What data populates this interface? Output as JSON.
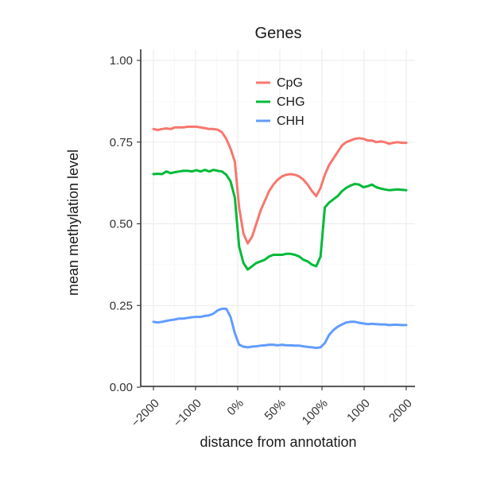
{
  "chart_data": {
    "type": "line",
    "title": "Genes",
    "xlabel": "distance from annotation",
    "ylabel": "mean methylation level",
    "ylim": [
      0,
      1
    ],
    "yticks": [
      {
        "value": 0,
        "label": "0.00"
      },
      {
        "value": 0.25,
        "label": "0.25"
      },
      {
        "value": 0.5,
        "label": "0.50"
      },
      {
        "value": 0.75,
        "label": "0.75"
      },
      {
        "value": 1,
        "label": "1.00"
      }
    ],
    "xticks": [
      "-2000",
      "-1000",
      "0%",
      "50%",
      "100%",
      "1000",
      "2000"
    ],
    "grid": true,
    "legend_position": "top-center",
    "series": [
      {
        "name": "CpG",
        "color": "#F8766D",
        "x": [
          -2000,
          -1900,
          -1800,
          -1700,
          -1600,
          -1500,
          -1400,
          -1300,
          -1200,
          -1100,
          -1000,
          -900,
          -800,
          -700,
          -600,
          -500,
          -400,
          -300,
          -200,
          -100,
          "0%",
          "5%",
          "10%",
          "15%",
          "20%",
          "25%",
          "30%",
          "35%",
          "40%",
          "45%",
          "50%",
          "55%",
          "60%",
          "65%",
          "70%",
          "75%",
          "80%",
          "85%",
          "90%",
          "95%",
          "100%",
          100,
          200,
          300,
          400,
          500,
          600,
          700,
          800,
          900,
          1000,
          1100,
          1200,
          1300,
          1400,
          1500,
          1600,
          1700,
          1800,
          1900
        ],
        "values": [
          0.79,
          0.787,
          0.79,
          0.792,
          0.79,
          0.795,
          0.795,
          0.795,
          0.797,
          0.797,
          0.797,
          0.795,
          0.793,
          0.79,
          0.79,
          0.788,
          0.78,
          0.76,
          0.73,
          0.69,
          0.55,
          0.47,
          0.44,
          0.46,
          0.5,
          0.54,
          0.57,
          0.6,
          0.62,
          0.635,
          0.645,
          0.65,
          0.652,
          0.65,
          0.645,
          0.635,
          0.62,
          0.6,
          0.585,
          0.61,
          0.65,
          0.68,
          0.7,
          0.72,
          0.74,
          0.75,
          0.755,
          0.76,
          0.762,
          0.76,
          0.755,
          0.755,
          0.75,
          0.752,
          0.75,
          0.745,
          0.748,
          0.75,
          0.748,
          0.748
        ]
      },
      {
        "name": "CHG",
        "color": "#00BA38",
        "x": [
          -2000,
          -1900,
          -1800,
          -1700,
          -1600,
          -1500,
          -1400,
          -1300,
          -1200,
          -1100,
          -1000,
          -900,
          -800,
          -700,
          -600,
          -500,
          -400,
          -300,
          -200,
          -100,
          "0%",
          "5%",
          "10%",
          "15%",
          "20%",
          "25%",
          "30%",
          "35%",
          "40%",
          "45%",
          "50%",
          "55%",
          "60%",
          "65%",
          "70%",
          "75%",
          "80%",
          "85%",
          "90%",
          "95%",
          "100%",
          100,
          200,
          300,
          400,
          500,
          600,
          700,
          800,
          900,
          1000,
          1100,
          1200,
          1300,
          1400,
          1500,
          1600,
          1700,
          1800,
          1900
        ],
        "values": [
          0.652,
          0.653,
          0.652,
          0.66,
          0.655,
          0.658,
          0.66,
          0.662,
          0.662,
          0.66,
          0.664,
          0.66,
          0.665,
          0.66,
          0.665,
          0.662,
          0.66,
          0.65,
          0.63,
          0.58,
          0.43,
          0.38,
          0.36,
          0.37,
          0.38,
          0.385,
          0.39,
          0.4,
          0.405,
          0.405,
          0.405,
          0.408,
          0.408,
          0.405,
          0.4,
          0.39,
          0.385,
          0.375,
          0.37,
          0.4,
          0.55,
          0.565,
          0.575,
          0.585,
          0.6,
          0.61,
          0.617,
          0.622,
          0.62,
          0.612,
          0.615,
          0.62,
          0.612,
          0.608,
          0.605,
          0.603,
          0.604,
          0.605,
          0.604,
          0.603
        ]
      },
      {
        "name": "CHH",
        "color": "#619CFF",
        "x": [
          -2000,
          -1900,
          -1800,
          -1700,
          -1600,
          -1500,
          -1400,
          -1300,
          -1200,
          -1100,
          -1000,
          -900,
          -800,
          -700,
          -600,
          -500,
          -400,
          -300,
          -200,
          -100,
          "0%",
          "5%",
          "10%",
          "15%",
          "20%",
          "25%",
          "30%",
          "35%",
          "40%",
          "45%",
          "50%",
          "55%",
          "60%",
          "65%",
          "70%",
          "75%",
          "80%",
          "85%",
          "90%",
          "95%",
          "100%",
          100,
          200,
          300,
          400,
          500,
          600,
          700,
          800,
          900,
          1000,
          1100,
          1200,
          1300,
          1400,
          1500,
          1600,
          1700,
          1800,
          1900
        ],
        "values": [
          0.2,
          0.198,
          0.2,
          0.203,
          0.205,
          0.207,
          0.21,
          0.21,
          0.212,
          0.214,
          0.215,
          0.215,
          0.218,
          0.22,
          0.225,
          0.235,
          0.24,
          0.24,
          0.215,
          0.165,
          0.13,
          0.124,
          0.122,
          0.124,
          0.125,
          0.127,
          0.128,
          0.13,
          0.13,
          0.128,
          0.13,
          0.128,
          0.128,
          0.127,
          0.127,
          0.125,
          0.123,
          0.122,
          0.12,
          0.122,
          0.135,
          0.16,
          0.175,
          0.185,
          0.192,
          0.198,
          0.2,
          0.2,
          0.197,
          0.195,
          0.193,
          0.194,
          0.193,
          0.192,
          0.192,
          0.19,
          0.191,
          0.191,
          0.19,
          0.19
        ]
      }
    ]
  }
}
